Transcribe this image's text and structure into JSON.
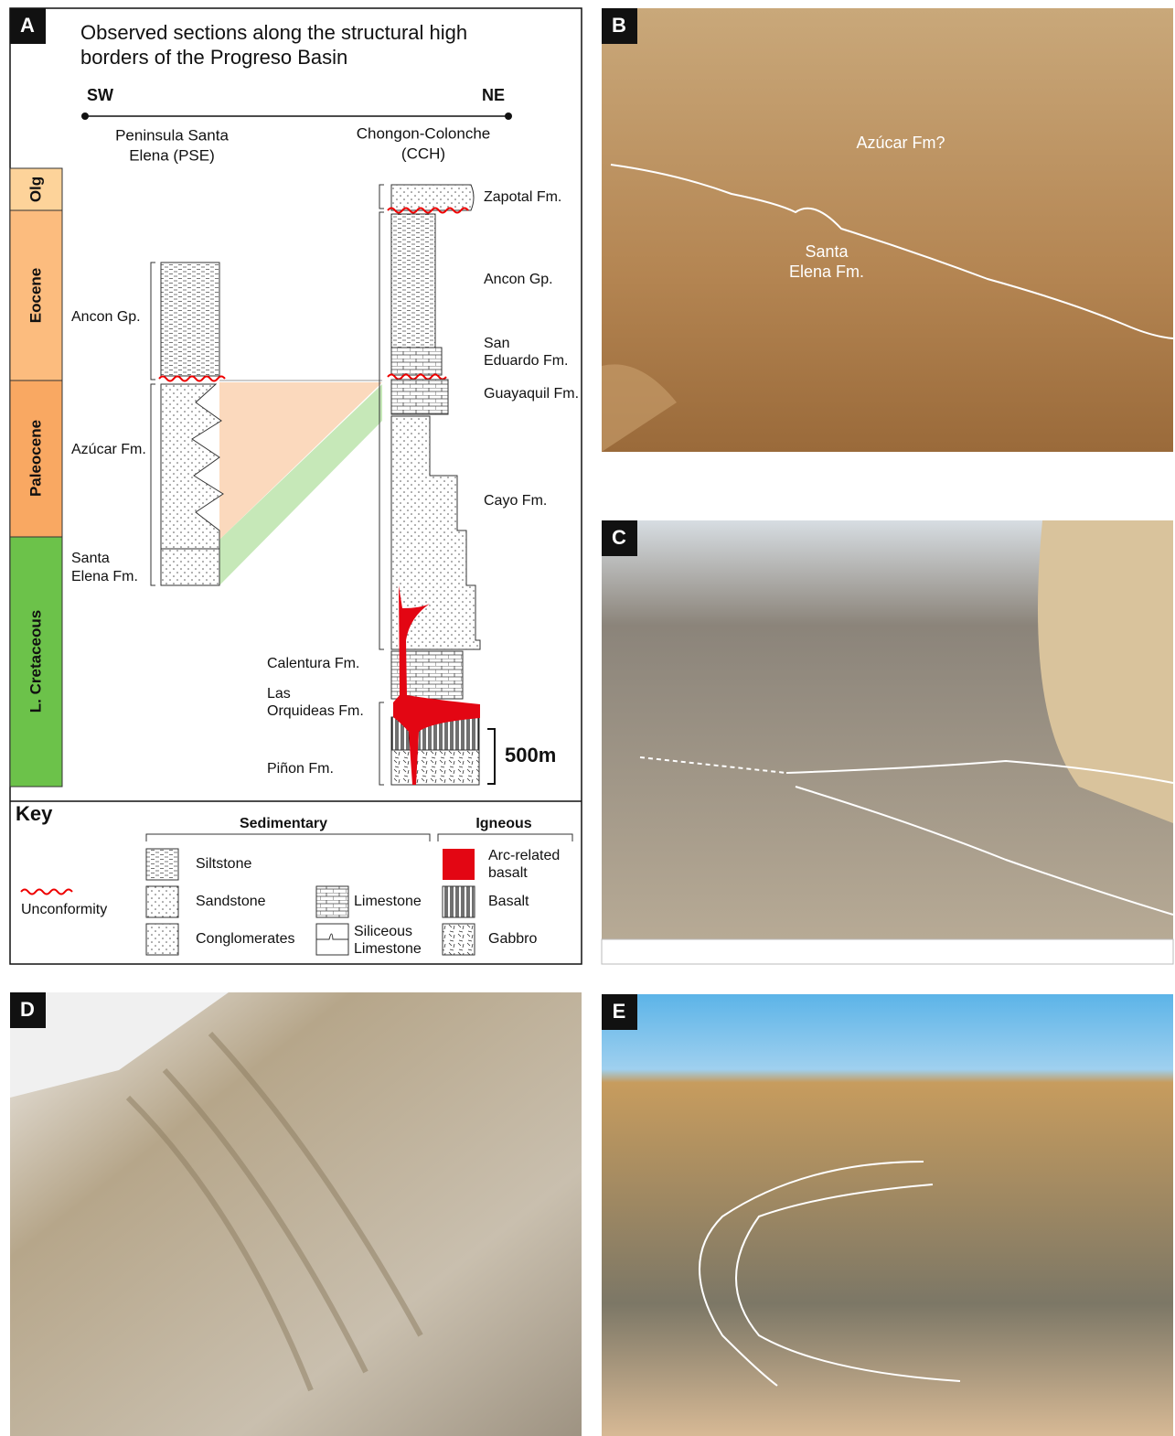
{
  "panel_a": {
    "label": "A",
    "title": [
      "Observed sections along the structural high",
      "borders of the Progreso Basin"
    ],
    "transect": {
      "start": "SW",
      "end": "NE"
    },
    "sections": [
      [
        "Peninsula Santa",
        "Elena (PSE)"
      ],
      [
        "Chongon-Colonche",
        "(CCH)"
      ]
    ],
    "epochs": [
      "Olg",
      "Eocene",
      "Paleocene",
      "L. Cretaceous"
    ],
    "formations_pse": [
      [
        "Ancon Gp."
      ],
      [
        "Azúcar Fm."
      ],
      [
        "Santa",
        "Elena Fm."
      ]
    ],
    "formations_cch": [
      [
        "Zapotal Fm."
      ],
      [
        "Ancon Gp."
      ],
      [
        "San",
        "Eduardo Fm."
      ],
      [
        "Guayaquil Fm."
      ],
      [
        "Cayo Fm."
      ],
      [
        "Calentura Fm."
      ],
      [
        "Las",
        "Orquideas Fm."
      ],
      [
        "Piñon Fm."
      ]
    ],
    "scale": "500m",
    "key": {
      "title": "Key",
      "groups": [
        "Sedimentary",
        "Igneous"
      ],
      "unconformity": "Unconformity",
      "sedimentary": [
        [
          "Siltstone"
        ],
        [
          "Sandstone"
        ],
        [
          "Conglomerates"
        ],
        [
          "Limestone"
        ],
        [
          "Siliceous",
          "Limestone"
        ]
      ],
      "igneous": [
        [
          "Arc-related",
          "basalt"
        ],
        [
          "Basalt"
        ],
        [
          "Gabbro"
        ]
      ]
    }
  },
  "panel_b": {
    "label": "B",
    "annotations": [
      [
        "Azúcar Fm?"
      ],
      [
        "Santa",
        "Elena Fm."
      ]
    ]
  },
  "panel_c": {
    "label": "C"
  },
  "panel_d": {
    "label": "D"
  },
  "panel_e": {
    "label": "E"
  }
}
